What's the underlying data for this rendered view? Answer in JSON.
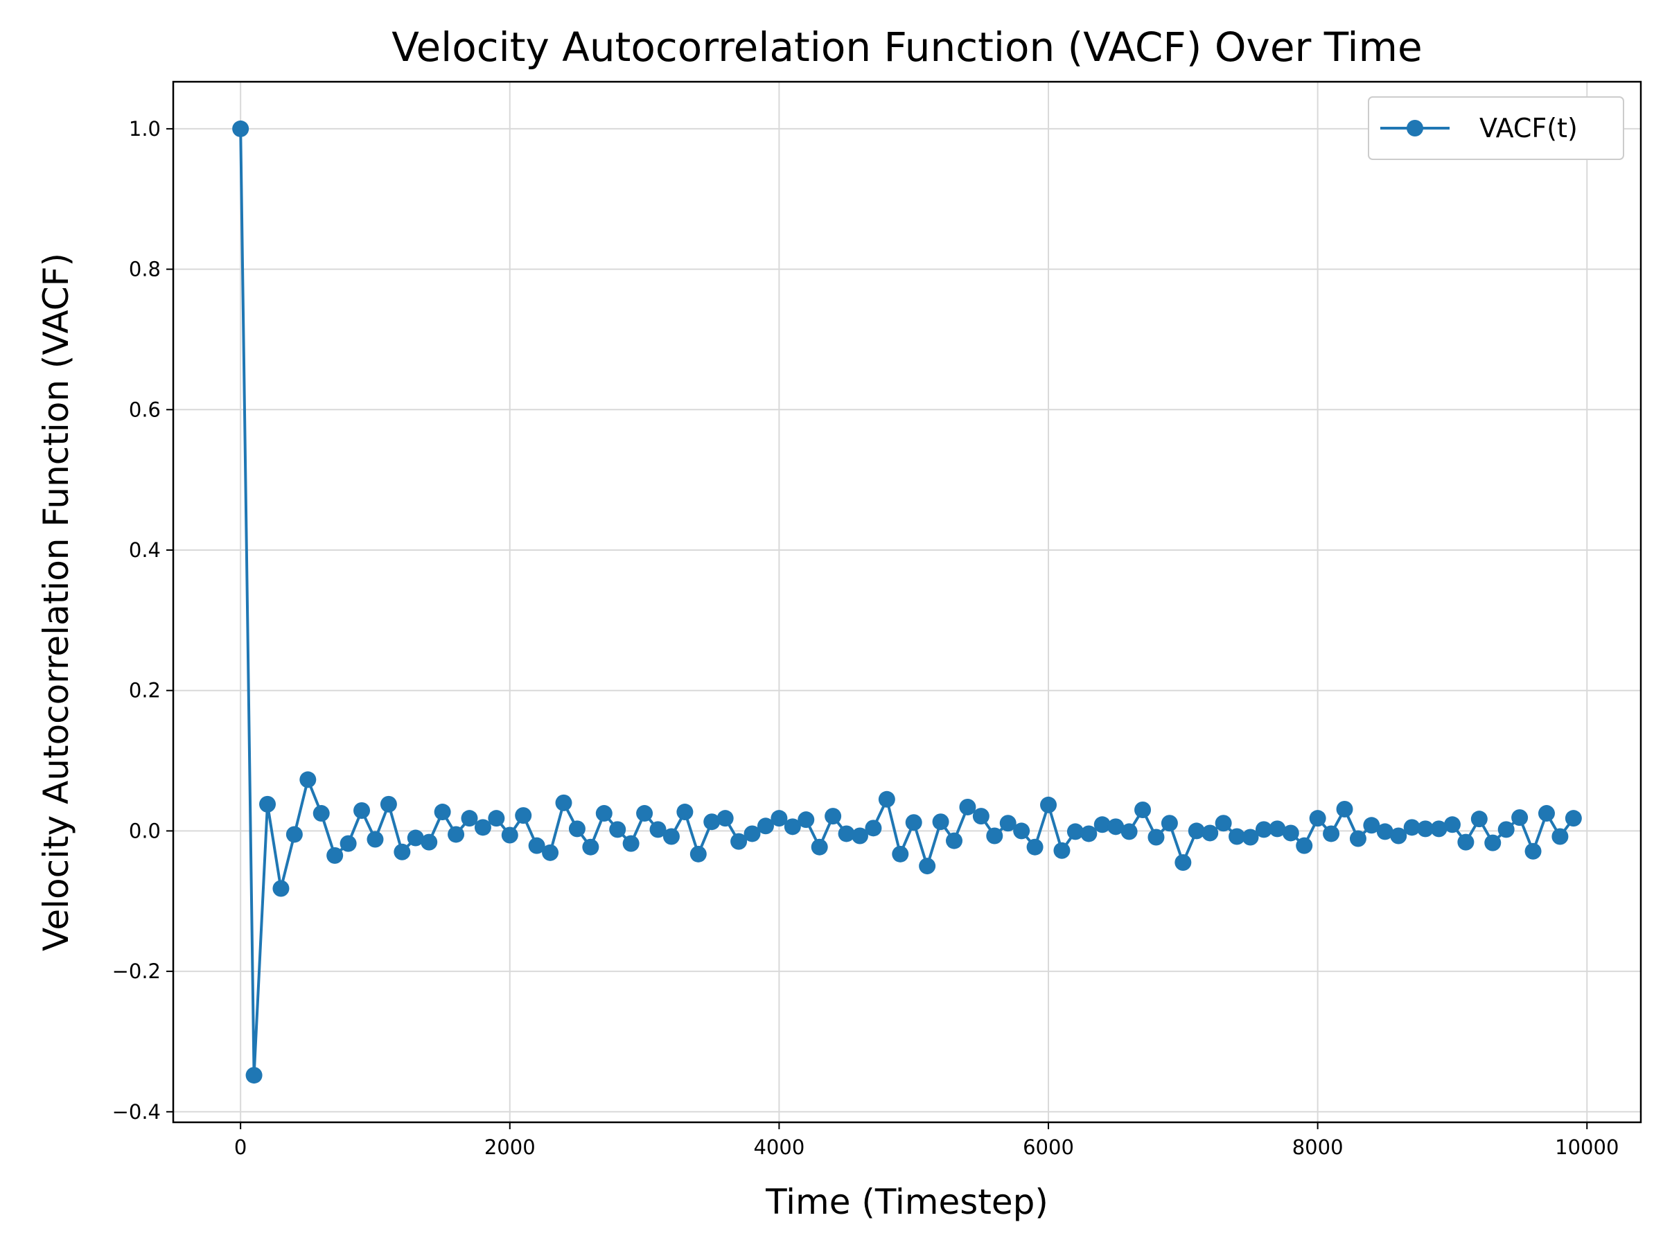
{
  "chart_data": {
    "type": "line",
    "title": "Velocity Autocorrelation Function (VACF) Over Time",
    "xlabel": "Time (Timestep)",
    "ylabel": "Velocity Autocorrelation Function (VACF)",
    "xlim": [
      -500,
      10400
    ],
    "ylim": [
      -0.415,
      1.067
    ],
    "x_ticks": [
      0,
      2000,
      4000,
      6000,
      8000,
      10000
    ],
    "x_tick_labels": [
      "0",
      "2000",
      "4000",
      "6000",
      "8000",
      "10000"
    ],
    "y_ticks": [
      -0.4,
      -0.2,
      0.0,
      0.2,
      0.4,
      0.6,
      0.8,
      1.0
    ],
    "y_tick_labels": [
      "−0.4",
      "−0.2",
      "0.0",
      "0.2",
      "0.4",
      "0.6",
      "0.8",
      "1.0"
    ],
    "grid": true,
    "legend_position": "top-right",
    "series": [
      {
        "name": "VACF(t)",
        "color": "#1f77b4",
        "marker": "circle",
        "x": [
          0,
          100,
          200,
          300,
          400,
          500,
          600,
          700,
          800,
          900,
          1000,
          1100,
          1200,
          1300,
          1400,
          1500,
          1600,
          1700,
          1800,
          1900,
          2000,
          2100,
          2200,
          2300,
          2400,
          2500,
          2600,
          2700,
          2800,
          2900,
          3000,
          3100,
          3200,
          3300,
          3400,
          3500,
          3600,
          3700,
          3800,
          3900,
          4000,
          4100,
          4200,
          4300,
          4400,
          4500,
          4600,
          4700,
          4800,
          4900,
          5000,
          5100,
          5200,
          5300,
          5400,
          5500,
          5600,
          5700,
          5800,
          5900,
          6000,
          6100,
          6200,
          6300,
          6400,
          6500,
          6600,
          6700,
          6800,
          6900,
          7000,
          7100,
          7200,
          7300,
          7400,
          7500,
          7600,
          7700,
          7800,
          7900,
          8000,
          8100,
          8200,
          8300,
          8400,
          8500,
          8600,
          8700,
          8800,
          8900,
          9000,
          9100,
          9200,
          9300,
          9400,
          9500,
          9600,
          9700,
          9800,
          9900
        ],
        "y": [
          1.0,
          -0.348,
          0.038,
          -0.082,
          -0.005,
          0.073,
          0.025,
          -0.035,
          -0.018,
          0.029,
          -0.012,
          0.038,
          -0.03,
          -0.01,
          -0.016,
          0.027,
          -0.005,
          0.018,
          0.005,
          0.018,
          -0.006,
          0.022,
          -0.021,
          -0.031,
          0.04,
          0.003,
          -0.023,
          0.025,
          0.002,
          -0.018,
          0.025,
          0.002,
          -0.008,
          0.027,
          -0.033,
          0.013,
          0.018,
          -0.015,
          -0.004,
          0.007,
          0.018,
          0.006,
          0.016,
          -0.023,
          0.021,
          -0.004,
          -0.007,
          0.004,
          0.045,
          -0.033,
          0.012,
          -0.05,
          0.013,
          -0.014,
          0.034,
          0.021,
          -0.007,
          0.011,
          0.0,
          -0.023,
          0.037,
          -0.028,
          -0.001,
          -0.004,
          0.009,
          0.006,
          -0.001,
          0.03,
          -0.009,
          0.011,
          -0.045,
          0.0,
          -0.003,
          0.011,
          -0.008,
          -0.009,
          0.002,
          0.003,
          -0.003,
          -0.021,
          0.018,
          -0.004,
          0.031,
          -0.011,
          0.008,
          -0.001,
          -0.007,
          0.005,
          0.003,
          0.003,
          0.009,
          -0.016,
          0.017,
          -0.017,
          0.002,
          0.019,
          -0.029,
          0.025,
          -0.008,
          0.018
        ]
      }
    ]
  }
}
